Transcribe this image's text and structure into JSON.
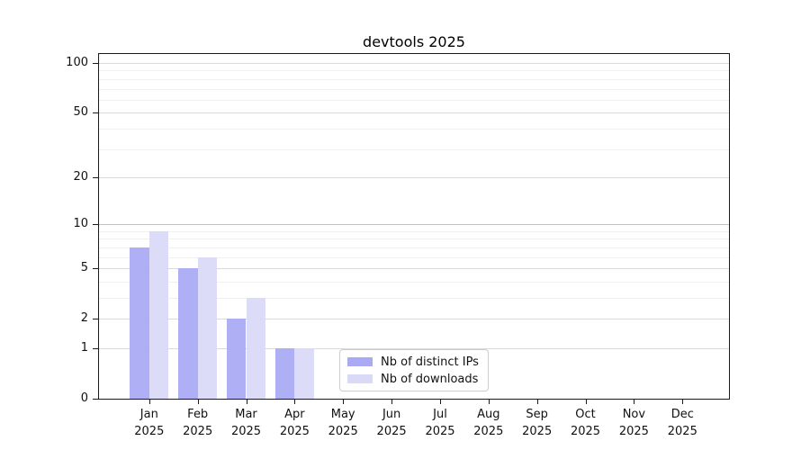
{
  "chart_data": {
    "type": "bar",
    "title": "devtools 2025",
    "categories": [
      "Jan",
      "Feb",
      "Mar",
      "Apr",
      "May",
      "Jun",
      "Jul",
      "Aug",
      "Sep",
      "Oct",
      "Nov",
      "Dec"
    ],
    "x_year_label": "2025",
    "series": [
      {
        "name": "Nb of distinct IPs",
        "color": "#a9a9f5",
        "values": [
          7,
          5,
          2,
          1,
          0,
          0,
          0,
          0,
          0,
          0,
          0,
          0
        ]
      },
      {
        "name": "Nb of downloads",
        "color": "#d9d9f8",
        "values": [
          9,
          6,
          3,
          1,
          0,
          0,
          0,
          0,
          0,
          0,
          0,
          0
        ]
      }
    ],
    "yscale": "log1p",
    "ylim": [
      0,
      113
    ],
    "yticks": [
      0,
      1,
      2,
      5,
      10,
      20,
      50,
      100
    ],
    "yticks_minor": [
      3,
      4,
      6,
      7,
      8,
      9,
      30,
      40,
      60,
      70,
      80,
      90
    ],
    "grid": true,
    "legend_position": "lower-center-inside",
    "colors": {
      "grid_major": "#d9d9d9",
      "grid_major_decade": "#c2c2c2",
      "grid_minor": "#efefef",
      "axis": "#1a1a1a",
      "text": "#111111"
    }
  }
}
